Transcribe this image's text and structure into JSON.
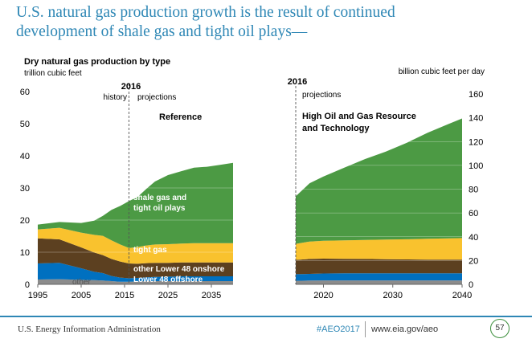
{
  "headline": {
    "line1": "U.S. natural gas production growth is the result of continued",
    "line2": "development of shale gas and tight oil plays—"
  },
  "chart_data": [
    {
      "type": "area",
      "stacked": true,
      "title": "Dry natural gas production by type",
      "ylabel": "trillion cubic feet",
      "ylim": [
        0,
        60
      ],
      "yticks": [
        0,
        10,
        20,
        30,
        40,
        50,
        60
      ],
      "xlim": [
        1995,
        2040
      ],
      "xticks": [
        1995,
        2005,
        2015,
        2025,
        2035
      ],
      "divider": {
        "x": 2016,
        "label": "2016",
        "left_label": "history",
        "right_label": "projections"
      },
      "case_label": "Reference",
      "x": [
        1995,
        2000,
        2005,
        2008,
        2010,
        2012,
        2014,
        2016,
        2018,
        2020,
        2022,
        2025,
        2028,
        2031,
        2034,
        2037,
        2040
      ],
      "series": [
        {
          "name": "other",
          "color": "#8c8c8c",
          "values": [
            1.5,
            1.6,
            1.4,
            1.3,
            1.2,
            1.0,
            0.8,
            0.8,
            0.9,
            1.0,
            1.0,
            1.0,
            1.0,
            1.0,
            1.0,
            1.0,
            1.0
          ]
        },
        {
          "name": "Lower 48 offshore",
          "color": "#0070c0",
          "values": [
            5.0,
            5.1,
            3.6,
            2.6,
            2.3,
            1.6,
            1.3,
            1.1,
            1.1,
            1.2,
            1.3,
            1.4,
            1.5,
            1.5,
            1.5,
            1.5,
            1.5
          ]
        },
        {
          "name": "other Lower 48 onshore",
          "color": "#5c4020",
          "values": [
            7.8,
            7.3,
            6.5,
            6.0,
            5.6,
            5.3,
            5.0,
            4.6,
            4.4,
            4.4,
            4.4,
            4.3,
            4.3,
            4.3,
            4.3,
            4.3,
            4.3
          ]
        },
        {
          "name": "tight gas",
          "color": "#f9c22e",
          "values": [
            2.8,
            3.6,
            4.6,
            5.5,
            6.0,
            5.8,
            5.3,
            4.8,
            5.2,
            5.5,
            5.7,
            5.8,
            5.9,
            6.0,
            6.0,
            6.0,
            6.0
          ]
        },
        {
          "name": "shale gas and tight oil plays",
          "color": "#4c9a44",
          "values": [
            1.5,
            1.8,
            3.0,
            4.4,
            6.2,
            9.5,
            12.0,
            14.6,
            15.6,
            17.6,
            19.6,
            21.5,
            22.5,
            23.5,
            23.8,
            24.4,
            25.0
          ]
        }
      ]
    },
    {
      "type": "area",
      "stacked": true,
      "ylabel": "billion cubic feet per day",
      "ylim": [
        0,
        160
      ],
      "yticks": [
        0,
        20,
        40,
        60,
        80,
        100,
        120,
        140,
        160
      ],
      "xlim": [
        2016,
        2040
      ],
      "xticks": [
        2020,
        2030,
        2040
      ],
      "divider": {
        "x": 2016,
        "label": "2016",
        "right_label": "projections"
      },
      "case_label": "High Oil and Gas Resource and Technology",
      "x": [
        2016,
        2018,
        2020,
        2023,
        2026,
        2029,
        2032,
        2035,
        2038,
        2040
      ],
      "series": [
        {
          "name": "other",
          "color": "#8c8c8c",
          "values": [
            3.0,
            3.2,
            3.3,
            3.3,
            3.3,
            3.3,
            3.3,
            3.3,
            3.3,
            3.3
          ]
        },
        {
          "name": "Lower 48 offshore",
          "color": "#0070c0",
          "values": [
            5.5,
            5.6,
            5.8,
            6.0,
            6.0,
            6.0,
            6.0,
            6.0,
            6.0,
            6.0
          ]
        },
        {
          "name": "other Lower 48 onshore",
          "color": "#5c4020",
          "values": [
            12.0,
            12.5,
            12.5,
            12.2,
            12.0,
            11.8,
            11.6,
            11.5,
            11.4,
            11.4
          ]
        },
        {
          "name": "tight gas",
          "color": "#f9c22e",
          "values": [
            13.5,
            14.7,
            15.0,
            15.5,
            16.0,
            16.5,
            17.0,
            17.5,
            18.0,
            18.2
          ]
        },
        {
          "name": "shale gas and tight oil plays",
          "color": "#4c9a44",
          "values": [
            40.0,
            49.0,
            54.0,
            61.0,
            68.0,
            74.0,
            81.0,
            89.0,
            96.0,
            100.5
          ]
        }
      ]
    }
  ],
  "area_labels": {
    "shale": "shale gas and tight oil plays",
    "tight": "tight gas",
    "onshore": "other Lower 48 onshore",
    "offshore": "Lower 48 offshore",
    "other": "other"
  },
  "footer": {
    "agency": "U.S. Energy Information Administration",
    "hashtag": "#AEO2017",
    "url": "www.eia.gov/aeo",
    "page_number": "57"
  }
}
